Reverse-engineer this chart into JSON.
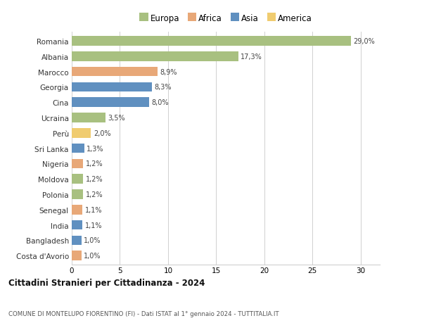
{
  "countries": [
    "Romania",
    "Albania",
    "Marocco",
    "Georgia",
    "Cina",
    "Ucraina",
    "Perù",
    "Sri Lanka",
    "Nigeria",
    "Moldova",
    "Polonia",
    "Senegal",
    "India",
    "Bangladesh",
    "Costa d'Avorio"
  ],
  "values": [
    29.0,
    17.3,
    8.9,
    8.3,
    8.0,
    3.5,
    2.0,
    1.3,
    1.2,
    1.2,
    1.2,
    1.1,
    1.1,
    1.0,
    1.0
  ],
  "labels": [
    "29,0%",
    "17,3%",
    "8,9%",
    "8,3%",
    "8,0%",
    "3,5%",
    "2,0%",
    "1,3%",
    "1,2%",
    "1,2%",
    "1,2%",
    "1,1%",
    "1,1%",
    "1,0%",
    "1,0%"
  ],
  "continents": [
    "Europa",
    "Europa",
    "Africa",
    "Asia",
    "Asia",
    "Europa",
    "America",
    "Asia",
    "Africa",
    "Europa",
    "Europa",
    "Africa",
    "Asia",
    "Asia",
    "Africa"
  ],
  "colors": {
    "Europa": "#a8c080",
    "Africa": "#e8a878",
    "Asia": "#6090c0",
    "America": "#f0cc70"
  },
  "legend_order": [
    "Europa",
    "Africa",
    "Asia",
    "America"
  ],
  "title": "Cittadini Stranieri per Cittadinanza - 2024",
  "subtitle": "COMUNE DI MONTELUPO FIORENTINO (FI) - Dati ISTAT al 1° gennaio 2024 - TUTTITALIA.IT",
  "xlim": [
    0,
    32
  ],
  "xticks": [
    0,
    5,
    10,
    15,
    20,
    25,
    30
  ],
  "bg_color": "#ffffff",
  "grid_color": "#d0d0d0"
}
